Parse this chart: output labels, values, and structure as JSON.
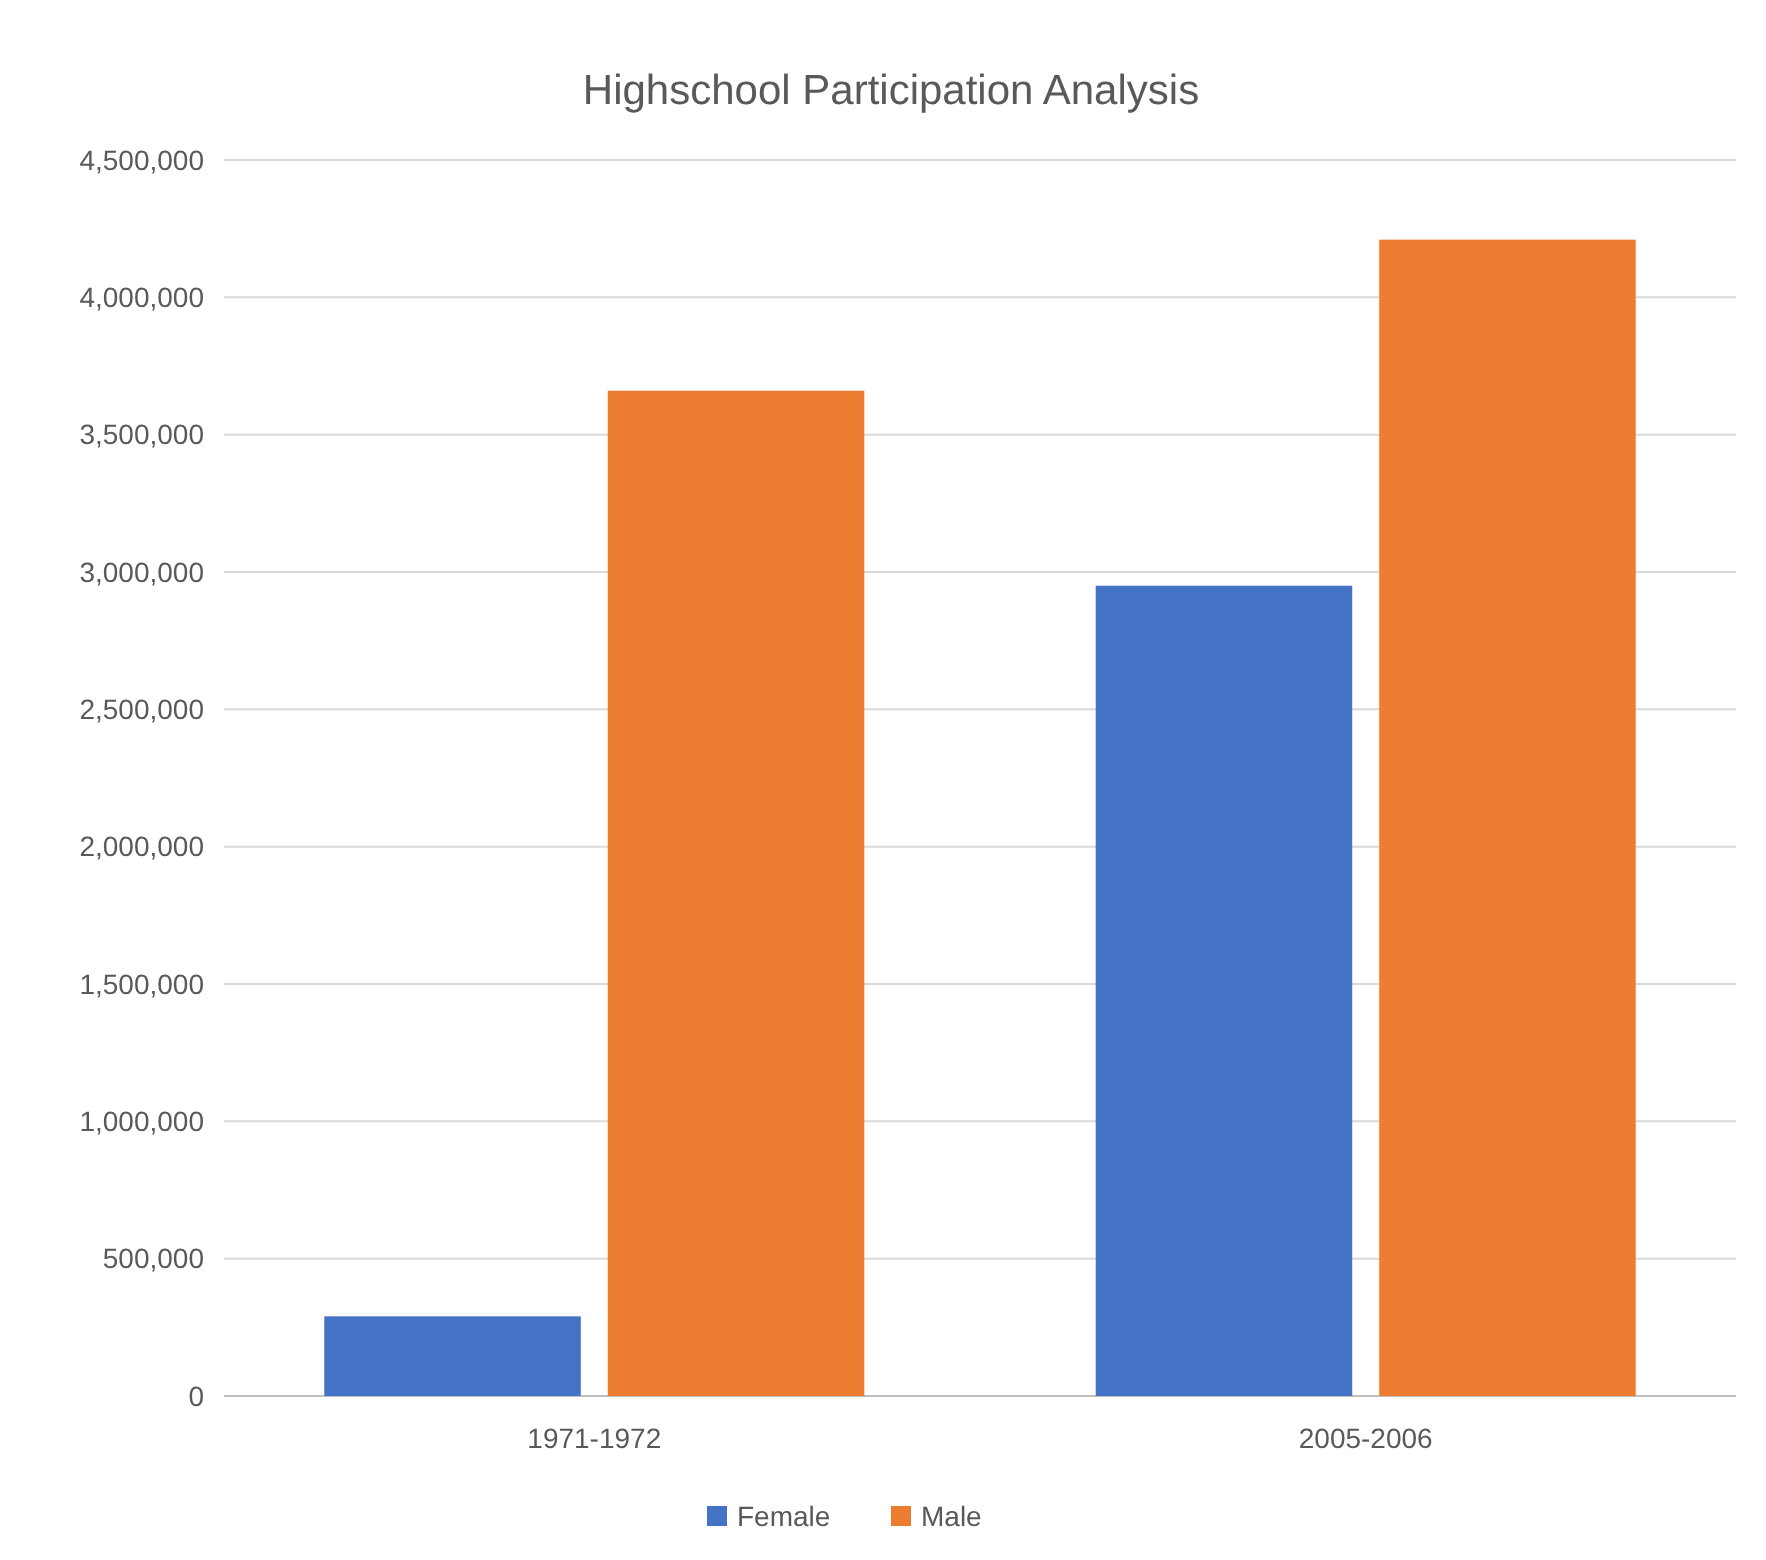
{
  "chart_data": {
    "type": "bar",
    "title": "Highschool Participation Analysis",
    "categories": [
      "1971-1972",
      "2005-2006"
    ],
    "series": [
      {
        "name": "Female",
        "color": "#4472c4",
        "values": [
          290000,
          2950000
        ]
      },
      {
        "name": "Male",
        "color": "#ed7d31",
        "values": [
          3660000,
          4210000
        ]
      }
    ],
    "ylim": [
      0,
      4500000
    ],
    "yticks": [
      {
        "value": 0,
        "label": "0"
      },
      {
        "value": 500000,
        "label": "500,000"
      },
      {
        "value": 1000000,
        "label": "1,000,000"
      },
      {
        "value": 1500000,
        "label": "1,500,000"
      },
      {
        "value": 2000000,
        "label": "2,000,000"
      },
      {
        "value": 2500000,
        "label": "2,500,000"
      },
      {
        "value": 3000000,
        "label": "3,000,000"
      },
      {
        "value": 3500000,
        "label": "3,500,000"
      },
      {
        "value": 4000000,
        "label": "4,000,000"
      },
      {
        "value": 4500000,
        "label": "4,500,000"
      }
    ],
    "grid": true,
    "legend": "bottom"
  }
}
